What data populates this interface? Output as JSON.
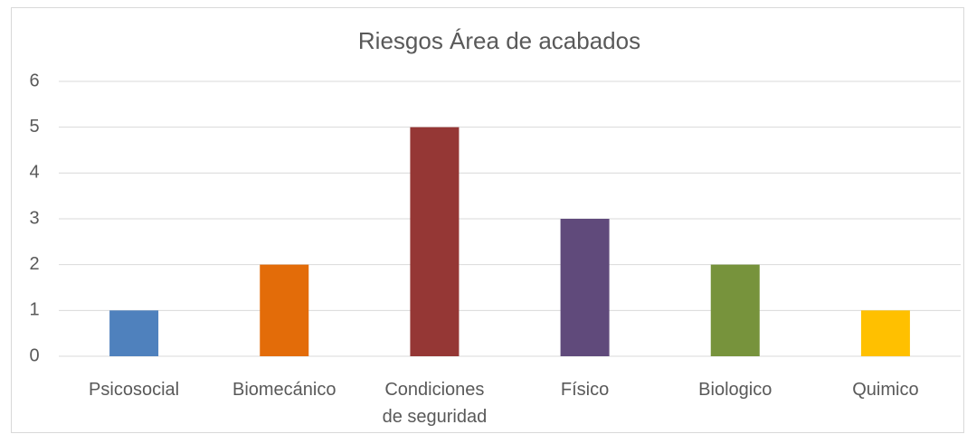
{
  "chart_data": {
    "type": "bar",
    "title": "Riesgos Área de acabados",
    "categories": [
      "Psicosocial",
      "Biomecánico",
      "Condiciones de seguridad",
      "Físico",
      "Biologico",
      "Quimico"
    ],
    "values": [
      1,
      2,
      5,
      3,
      2,
      1
    ],
    "colors": [
      "#4f81bd",
      "#e36c09",
      "#953735",
      "#604a7b",
      "#77933c",
      "#ffc000"
    ],
    "ylim": [
      0,
      6
    ],
    "yticks": [
      0,
      1,
      2,
      3,
      4,
      5,
      6
    ],
    "grid": true
  }
}
